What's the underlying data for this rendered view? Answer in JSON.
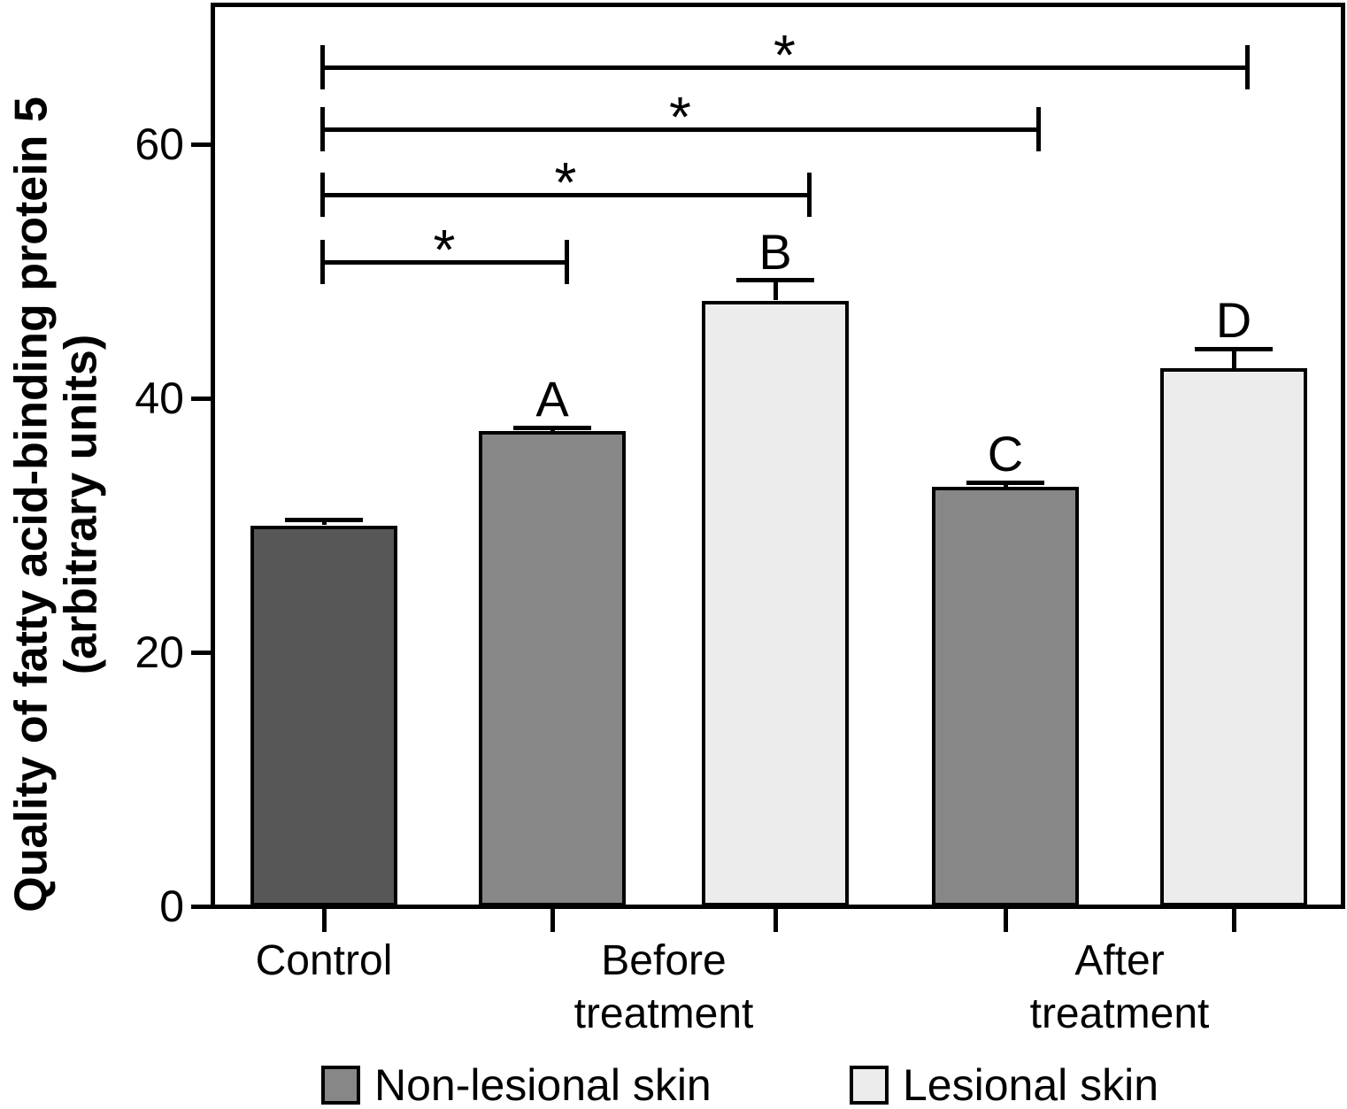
{
  "chart_data": {
    "type": "bar",
    "title": "",
    "xlabel": "",
    "ylabel_line1": "Quality of fatty acid-binding protein 5",
    "ylabel_line2": "(arbitrary units)",
    "ylim": [
      0,
      71
    ],
    "yticks": [
      0,
      20,
      40,
      60
    ],
    "grid": false,
    "legend_position": "bottom",
    "groups": [
      {
        "label_lines": [
          "Control"
        ],
        "bars": [
          {
            "series": "Control",
            "value": 30,
            "error": 0.4,
            "letter": "",
            "color": "#575757"
          }
        ]
      },
      {
        "label_lines": [
          "Before",
          "treatment"
        ],
        "bars": [
          {
            "series": "Non-lesional skin",
            "value": 37.4,
            "error": 0.3,
            "letter": "A",
            "color": "#878787"
          },
          {
            "series": "Lesional skin",
            "value": 47.7,
            "error": 1.6,
            "letter": "B",
            "color": "#ececec"
          }
        ]
      },
      {
        "label_lines": [
          "After",
          "treatment"
        ],
        "bars": [
          {
            "series": "Non-lesional skin",
            "value": 33,
            "error": 0.35,
            "letter": "C",
            "color": "#878787"
          },
          {
            "series": "Lesional skin",
            "value": 42.4,
            "error": 1.5,
            "letter": "D",
            "color": "#ececec"
          }
        ]
      }
    ],
    "significance": [
      {
        "from_bar": 0,
        "to_bar": 1,
        "symbol": "*"
      },
      {
        "from_bar": 0,
        "to_bar": 2,
        "symbol": "*"
      },
      {
        "from_bar": 0,
        "to_bar": 3,
        "symbol": "*"
      },
      {
        "from_bar": 0,
        "to_bar": 4,
        "symbol": "*"
      }
    ],
    "legend": [
      {
        "label": "Non-lesional skin",
        "color": "#878787"
      },
      {
        "label": "Lesional skin",
        "color": "#ececec"
      }
    ],
    "colors": {
      "axis": "#000000",
      "background": "#ffffff"
    }
  }
}
